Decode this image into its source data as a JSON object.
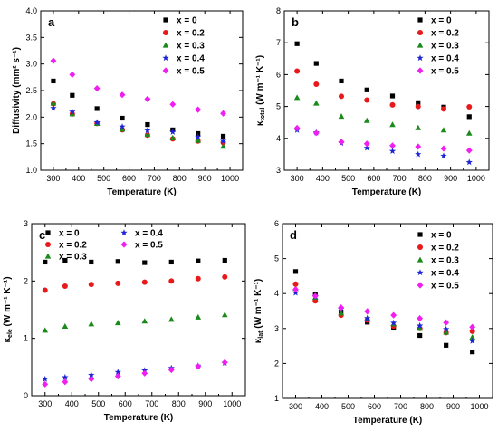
{
  "colors": {
    "x0": "#000000",
    "x02": "#e8191b",
    "x03": "#1a8a1a",
    "x04": "#1f24d6",
    "x05": "#f01ef0"
  },
  "chart_data": [
    {
      "panel": "a",
      "type": "scatter",
      "xlabel": "Temperature (K)",
      "ylabel": "Diffusivity (mm² s⁻¹)",
      "xlim": [
        250,
        1050
      ],
      "ylim": [
        1.0,
        4.0
      ],
      "xticks": [
        300,
        400,
        500,
        600,
        700,
        800,
        900,
        1000
      ],
      "yticks": [
        1.0,
        1.5,
        2.0,
        2.5,
        3.0,
        3.5,
        4.0
      ],
      "ytick_format": 1,
      "legend_pos": "top-right",
      "x": [
        300,
        375,
        473,
        573,
        673,
        773,
        873,
        973
      ],
      "series": [
        {
          "name": "x = 0",
          "marker": "square",
          "color": "#000000",
          "values": [
            2.68,
            2.41,
            2.16,
            1.98,
            1.86,
            1.76,
            1.69,
            1.64
          ]
        },
        {
          "name": "x = 0.2",
          "marker": "circle",
          "color": "#e8191b",
          "values": [
            2.25,
            2.06,
            1.88,
            1.76,
            1.66,
            1.59,
            1.55,
            1.52
          ]
        },
        {
          "name": "x = 0.3",
          "marker": "triangle",
          "color": "#1a8a1a",
          "values": [
            2.26,
            2.06,
            1.88,
            1.77,
            1.67,
            1.61,
            1.56,
            1.45
          ]
        },
        {
          "name": "x = 0.4",
          "marker": "star",
          "color": "#1f24d6",
          "values": [
            2.17,
            2.1,
            1.9,
            1.82,
            1.75,
            1.72,
            1.63,
            1.55
          ]
        },
        {
          "name": "x = 0.5",
          "marker": "diamond",
          "color": "#f01ef0",
          "values": [
            3.06,
            2.8,
            2.54,
            2.42,
            2.34,
            2.24,
            2.14,
            2.07
          ]
        }
      ]
    },
    {
      "panel": "b",
      "type": "scatter",
      "xlabel": "Temperature (K)",
      "ylabel": "κ_total (W m⁻¹ K⁻¹)",
      "xlim": [
        250,
        1050
      ],
      "ylim": [
        3.0,
        8.0
      ],
      "xticks": [
        300,
        400,
        500,
        600,
        700,
        800,
        900,
        1000
      ],
      "yticks": [
        3,
        4,
        5,
        6,
        7,
        8
      ],
      "ytick_format": 0,
      "legend_pos": "top-right",
      "x": [
        300,
        375,
        473,
        573,
        673,
        773,
        873,
        973
      ],
      "series": [
        {
          "name": "x = 0",
          "marker": "square",
          "color": "#000000",
          "values": [
            6.97,
            6.35,
            5.8,
            5.52,
            5.33,
            5.12,
            4.98,
            4.68
          ]
        },
        {
          "name": "x = 0.2",
          "marker": "circle",
          "color": "#e8191b",
          "values": [
            6.11,
            5.7,
            5.32,
            5.2,
            5.05,
            5.0,
            4.92,
            4.99
          ]
        },
        {
          "name": "x = 0.3",
          "marker": "triangle",
          "color": "#1a8a1a",
          "values": [
            5.28,
            5.1,
            4.69,
            4.56,
            4.43,
            4.33,
            4.26,
            4.16
          ]
        },
        {
          "name": "x = 0.4",
          "marker": "star",
          "color": "#1f24d6",
          "values": [
            4.26,
            4.18,
            3.85,
            3.7,
            3.6,
            3.5,
            3.45,
            3.25
          ]
        },
        {
          "name": "x = 0.5",
          "marker": "diamond",
          "color": "#f01ef0",
          "values": [
            4.32,
            4.17,
            3.89,
            3.83,
            3.77,
            3.74,
            3.68,
            3.62
          ]
        }
      ]
    },
    {
      "panel": "c",
      "type": "scatter",
      "xlabel": "Temperature (K)",
      "ylabel": "κ_ele (W m⁻¹ K⁻¹)",
      "xlim": [
        250,
        1050
      ],
      "ylim": [
        0.0,
        3.0
      ],
      "xticks": [
        300,
        400,
        500,
        600,
        700,
        800,
        900,
        1000
      ],
      "yticks": [
        0,
        1,
        2,
        3
      ],
      "ytick_format": 0,
      "legend_pos": "top",
      "x": [
        300,
        375,
        473,
        573,
        673,
        773,
        873,
        973
      ],
      "series": [
        {
          "name": "x = 0",
          "marker": "square",
          "color": "#000000",
          "values": [
            2.33,
            2.36,
            2.33,
            2.34,
            2.32,
            2.33,
            2.35,
            2.36
          ]
        },
        {
          "name": "x = 0.2",
          "marker": "circle",
          "color": "#e8191b",
          "values": [
            1.84,
            1.91,
            1.94,
            1.96,
            1.98,
            2.0,
            2.04,
            2.07
          ]
        },
        {
          "name": "x = 0.3",
          "marker": "triangle",
          "color": "#1a8a1a",
          "values": [
            1.14,
            1.21,
            1.25,
            1.27,
            1.3,
            1.33,
            1.37,
            1.41
          ]
        },
        {
          "name": "x = 0.4",
          "marker": "star",
          "color": "#1f24d6",
          "values": [
            0.29,
            0.32,
            0.36,
            0.41,
            0.44,
            0.48,
            0.52,
            0.57
          ]
        },
        {
          "name": "x = 0.5",
          "marker": "diamond",
          "color": "#f01ef0",
          "values": [
            0.2,
            0.24,
            0.29,
            0.34,
            0.39,
            0.45,
            0.51,
            0.58
          ]
        }
      ]
    },
    {
      "panel": "d",
      "type": "scatter",
      "xlabel": "Temperature (K)",
      "ylabel": "κ_lat (W m⁻¹ K⁻¹)",
      "xlim": [
        250,
        1050
      ],
      "ylim": [
        1.0,
        6.0
      ],
      "xticks": [
        300,
        400,
        500,
        600,
        700,
        800,
        900,
        1000
      ],
      "yticks": [
        1,
        2,
        3,
        4,
        5,
        6
      ],
      "ytick_format": 0,
      "legend_pos": "top-right",
      "x": [
        300,
        375,
        473,
        573,
        673,
        773,
        873,
        973
      ],
      "series": [
        {
          "name": "x = 0",
          "marker": "square",
          "color": "#000000",
          "values": [
            4.63,
            3.99,
            3.47,
            3.18,
            3.01,
            2.8,
            2.52,
            2.33
          ]
        },
        {
          "name": "x = 0.2",
          "marker": "circle",
          "color": "#e8191b",
          "values": [
            4.27,
            3.79,
            3.38,
            3.24,
            3.07,
            3.0,
            2.88,
            2.92
          ]
        },
        {
          "name": "x = 0.3",
          "marker": "triangle",
          "color": "#1a8a1a",
          "values": [
            4.14,
            3.89,
            3.44,
            3.29,
            3.13,
            3.0,
            2.89,
            2.75
          ]
        },
        {
          "name": "x = 0.4",
          "marker": "star",
          "color": "#1f24d6",
          "values": [
            4.02,
            3.92,
            3.55,
            3.29,
            3.16,
            3.08,
            2.98,
            2.64
          ]
        },
        {
          "name": "x = 0.5",
          "marker": "diamond",
          "color": "#f01ef0",
          "values": [
            4.12,
            3.93,
            3.6,
            3.49,
            3.38,
            3.29,
            3.17,
            3.04
          ]
        }
      ]
    }
  ]
}
